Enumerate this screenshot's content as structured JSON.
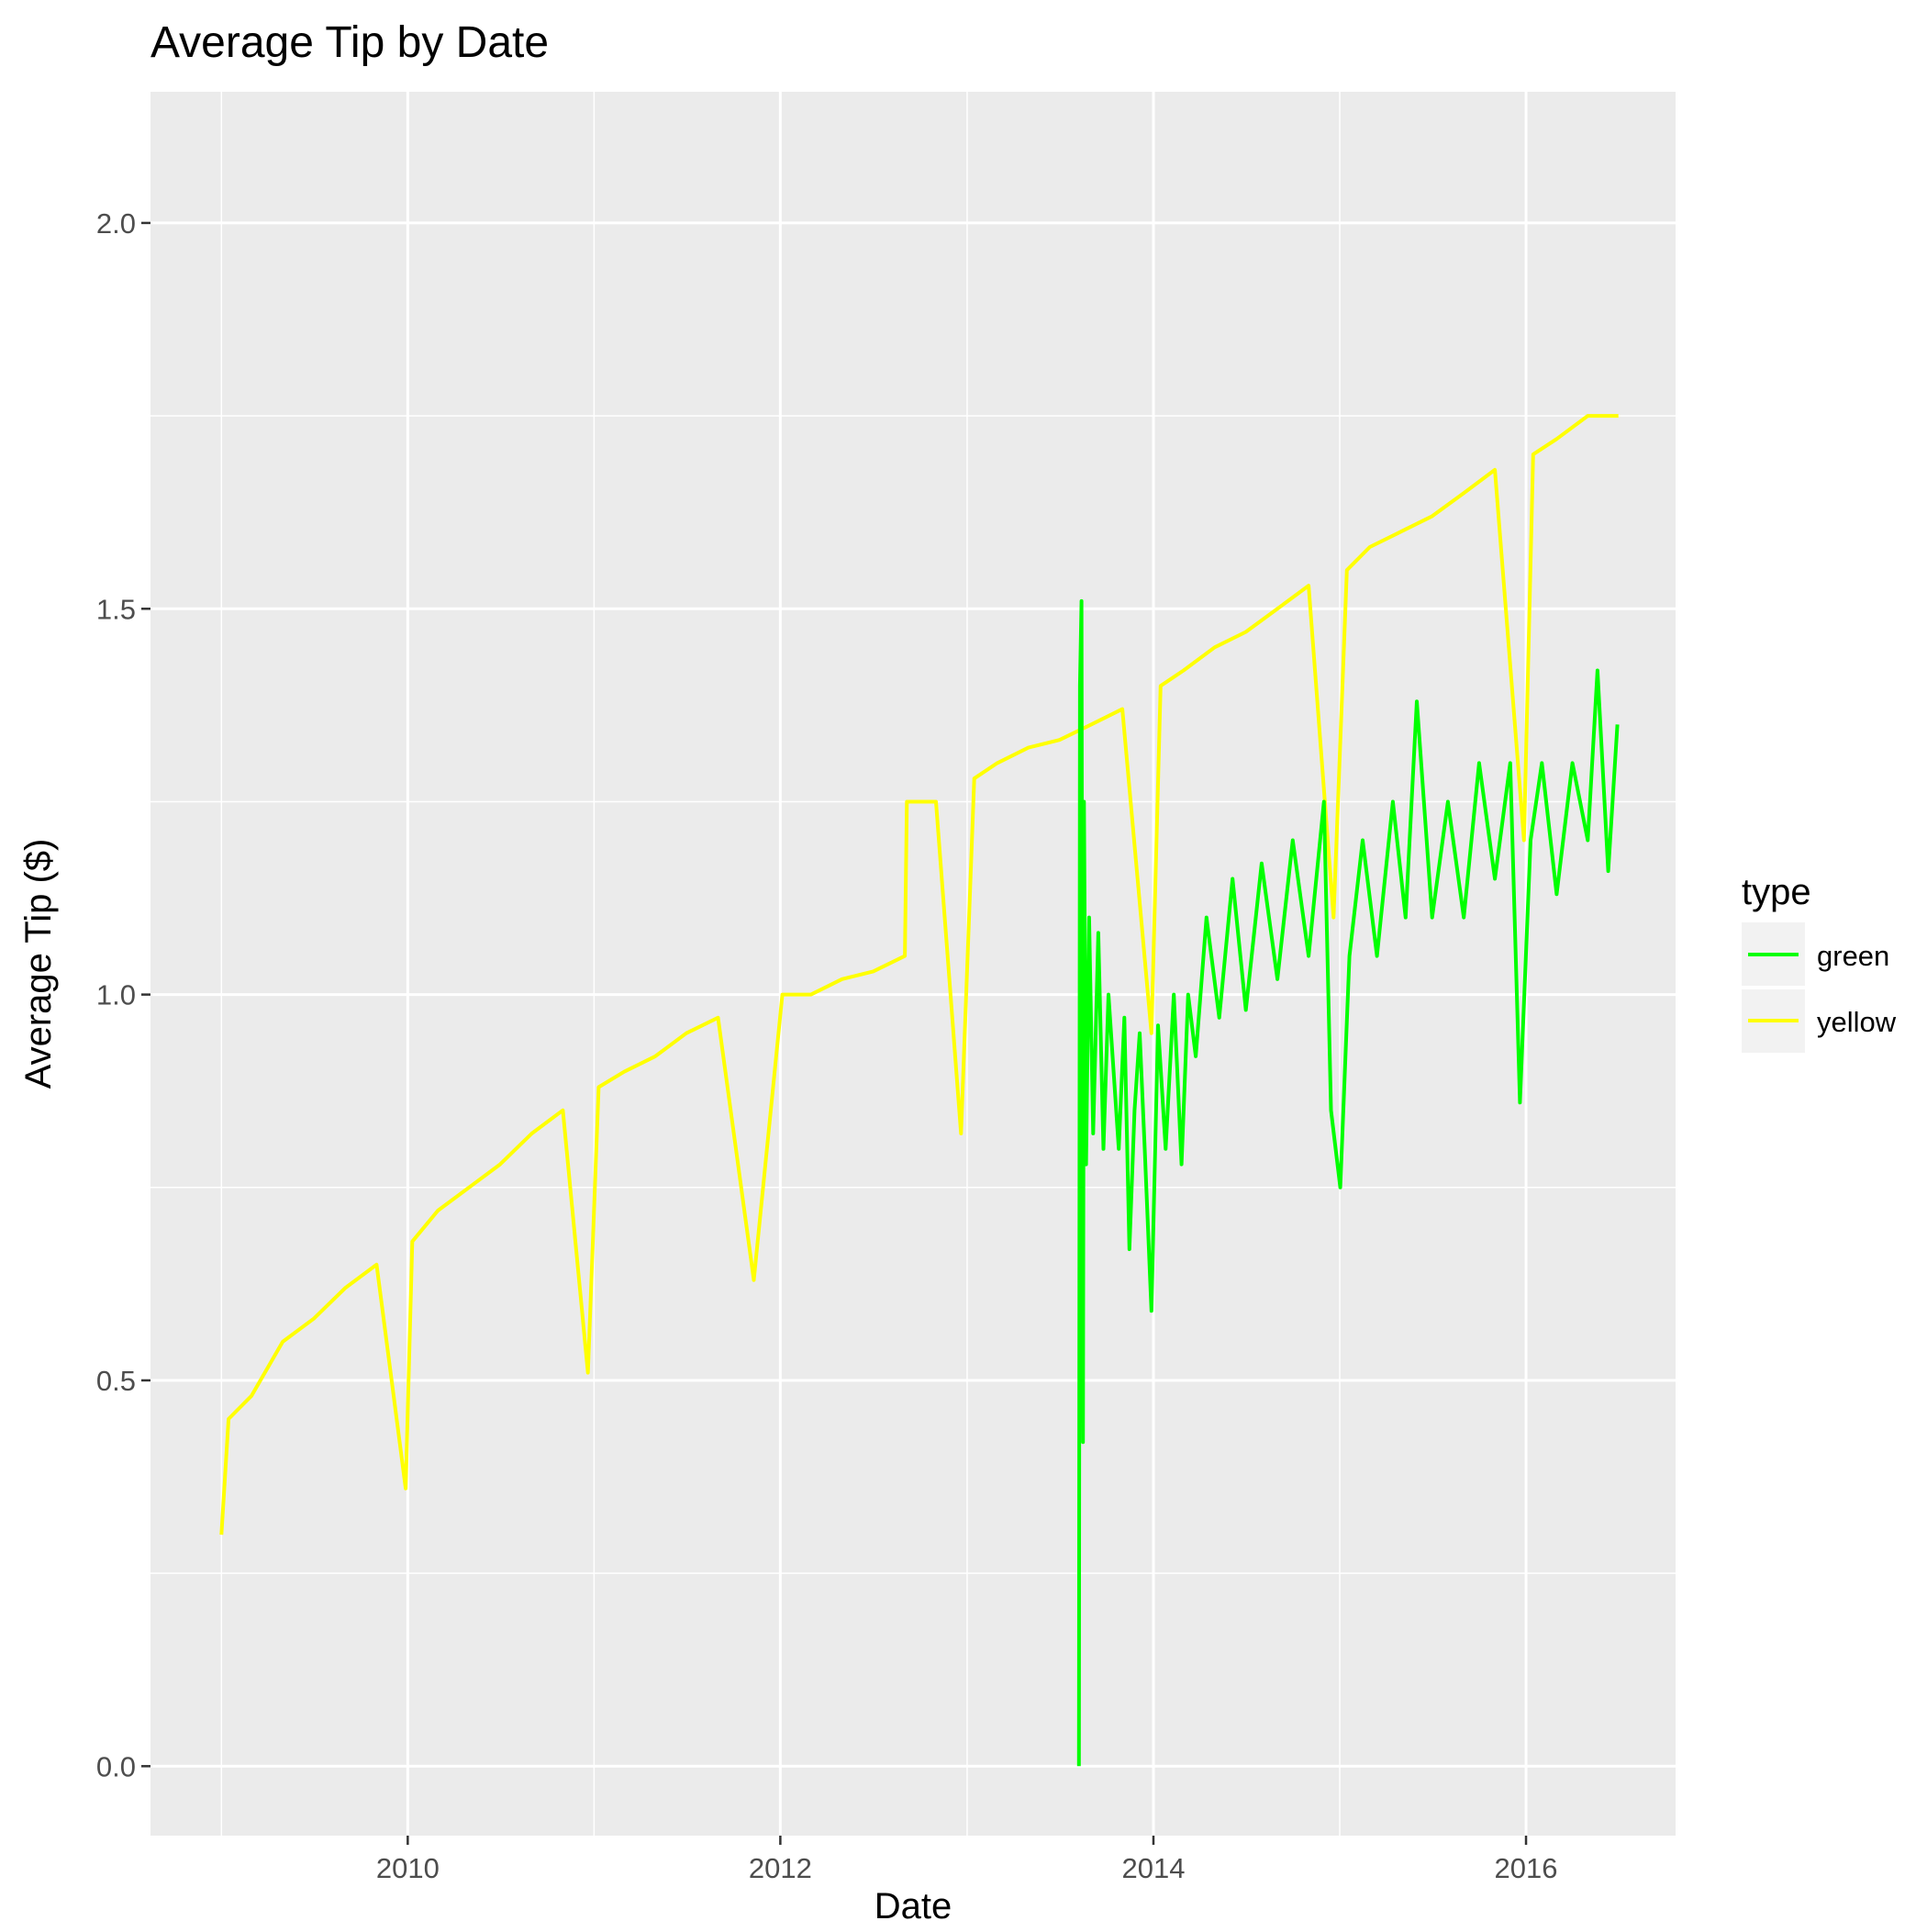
{
  "chart_data": {
    "type": "line",
    "title": "Average Tip by Date",
    "xlabel": "Date",
    "ylabel": "Average Tip ($)",
    "x_type": "date",
    "xlim": [
      "2008-08-15",
      "2016-10-20"
    ],
    "ylim": [
      -0.09,
      2.17
    ],
    "x_ticks": [
      {
        "value": "2010-01-01",
        "label": "2010"
      },
      {
        "value": "2012-01-01",
        "label": "2012"
      },
      {
        "value": "2014-01-01",
        "label": "2014"
      },
      {
        "value": "2016-01-01",
        "label": "2016"
      }
    ],
    "x_minor_ticks": [
      "2009-01-01",
      "2011-01-01",
      "2013-01-01",
      "2015-01-01"
    ],
    "y_ticks": [
      {
        "value": 0.0,
        "label": "0.0"
      },
      {
        "value": 0.5,
        "label": "0.5"
      },
      {
        "value": 1.0,
        "label": "1.0"
      },
      {
        "value": 1.5,
        "label": "1.5"
      },
      {
        "value": 2.0,
        "label": "2.0"
      }
    ],
    "y_minor_ticks": [
      0.25,
      0.75,
      1.25,
      1.75
    ],
    "grid": true,
    "panel_background": "#ebebeb",
    "legend": {
      "title": "type",
      "position": "right"
    },
    "series": [
      {
        "name": "green",
        "color": "#00ff00",
        "points": [
          [
            "2013-08-08",
            0.0
          ],
          [
            "2013-08-10",
            1.4
          ],
          [
            "2013-08-13",
            1.51
          ],
          [
            "2013-08-16",
            0.42
          ],
          [
            "2013-08-18",
            1.25
          ],
          [
            "2013-08-22",
            0.78
          ],
          [
            "2013-08-28",
            1.1
          ],
          [
            "2013-09-05",
            0.82
          ],
          [
            "2013-09-15",
            1.08
          ],
          [
            "2013-09-25",
            0.8
          ],
          [
            "2013-10-05",
            1.0
          ],
          [
            "2013-10-15",
            0.9
          ],
          [
            "2013-10-25",
            0.8
          ],
          [
            "2013-11-05",
            0.97
          ],
          [
            "2013-11-15",
            0.67
          ],
          [
            "2013-11-25",
            0.85
          ],
          [
            "2013-12-05",
            0.95
          ],
          [
            "2013-12-15",
            0.8
          ],
          [
            "2013-12-28",
            0.59
          ],
          [
            "2014-01-10",
            0.96
          ],
          [
            "2014-01-25",
            0.8
          ],
          [
            "2014-02-10",
            1.0
          ],
          [
            "2014-02-25",
            0.78
          ],
          [
            "2014-03-10",
            1.0
          ],
          [
            "2014-03-25",
            0.92
          ],
          [
            "2014-04-15",
            1.1
          ],
          [
            "2014-05-10",
            0.97
          ],
          [
            "2014-06-05",
            1.15
          ],
          [
            "2014-07-01",
            0.98
          ],
          [
            "2014-08-01",
            1.17
          ],
          [
            "2014-09-01",
            1.02
          ],
          [
            "2014-10-01",
            1.2
          ],
          [
            "2014-11-01",
            1.05
          ],
          [
            "2014-12-01",
            1.25
          ],
          [
            "2014-12-15",
            0.85
          ],
          [
            "2015-01-02",
            0.75
          ],
          [
            "2015-01-20",
            1.05
          ],
          [
            "2015-02-15",
            1.2
          ],
          [
            "2015-03-15",
            1.05
          ],
          [
            "2015-04-15",
            1.25
          ],
          [
            "2015-05-10",
            1.1
          ],
          [
            "2015-06-01",
            1.38
          ],
          [
            "2015-07-01",
            1.1
          ],
          [
            "2015-08-01",
            1.25
          ],
          [
            "2015-09-01",
            1.1
          ],
          [
            "2015-10-01",
            1.3
          ],
          [
            "2015-11-01",
            1.15
          ],
          [
            "2015-12-01",
            1.3
          ],
          [
            "2015-12-20",
            0.86
          ],
          [
            "2016-01-10",
            1.2
          ],
          [
            "2016-02-01",
            1.3
          ],
          [
            "2016-03-01",
            1.13
          ],
          [
            "2016-04-01",
            1.3
          ],
          [
            "2016-05-01",
            1.2
          ],
          [
            "2016-05-20",
            1.42
          ],
          [
            "2016-06-10",
            1.16
          ],
          [
            "2016-06-28",
            1.35
          ]
        ]
      },
      {
        "name": "yellow",
        "color": "#ffff00",
        "points": [
          [
            "2009-01-01",
            0.3
          ],
          [
            "2009-01-15",
            0.45
          ],
          [
            "2009-03-01",
            0.48
          ],
          [
            "2009-05-01",
            0.55
          ],
          [
            "2009-07-01",
            0.58
          ],
          [
            "2009-09-01",
            0.62
          ],
          [
            "2009-11-01",
            0.65
          ],
          [
            "2009-12-28",
            0.36
          ],
          [
            "2010-01-10",
            0.68
          ],
          [
            "2010-03-01",
            0.72
          ],
          [
            "2010-05-01",
            0.75
          ],
          [
            "2010-07-01",
            0.78
          ],
          [
            "2010-09-01",
            0.82
          ],
          [
            "2010-11-01",
            0.85
          ],
          [
            "2010-12-20",
            0.51
          ],
          [
            "2011-01-10",
            0.88
          ],
          [
            "2011-03-01",
            0.9
          ],
          [
            "2011-05-01",
            0.92
          ],
          [
            "2011-07-01",
            0.95
          ],
          [
            "2011-09-01",
            0.97
          ],
          [
            "2011-11-10",
            0.63
          ],
          [
            "2012-01-05",
            1.0
          ],
          [
            "2012-03-01",
            1.0
          ],
          [
            "2012-05-01",
            1.02
          ],
          [
            "2012-07-01",
            1.03
          ],
          [
            "2012-09-01",
            1.05
          ],
          [
            "2012-09-05",
            1.25
          ],
          [
            "2012-11-01",
            1.25
          ],
          [
            "2012-12-20",
            0.82
          ],
          [
            "2013-01-15",
            1.28
          ],
          [
            "2013-03-01",
            1.3
          ],
          [
            "2013-05-01",
            1.32
          ],
          [
            "2013-07-01",
            1.33
          ],
          [
            "2013-09-01",
            1.35
          ],
          [
            "2013-11-01",
            1.37
          ],
          [
            "2013-12-28",
            0.95
          ],
          [
            "2014-01-15",
            1.4
          ],
          [
            "2014-03-01",
            1.42
          ],
          [
            "2014-05-01",
            1.45
          ],
          [
            "2014-07-01",
            1.47
          ],
          [
            "2014-09-01",
            1.5
          ],
          [
            "2014-11-01",
            1.53
          ],
          [
            "2014-12-20",
            1.1
          ],
          [
            "2015-01-15",
            1.55
          ],
          [
            "2015-03-01",
            1.58
          ],
          [
            "2015-05-01",
            1.6
          ],
          [
            "2015-07-01",
            1.62
          ],
          [
            "2015-09-01",
            1.65
          ],
          [
            "2015-11-01",
            1.68
          ],
          [
            "2015-12-28",
            1.2
          ],
          [
            "2016-01-15",
            1.7
          ],
          [
            "2016-03-01",
            1.72
          ],
          [
            "2016-05-01",
            1.75
          ],
          [
            "2016-06-30",
            1.75
          ]
        ]
      }
    ]
  }
}
